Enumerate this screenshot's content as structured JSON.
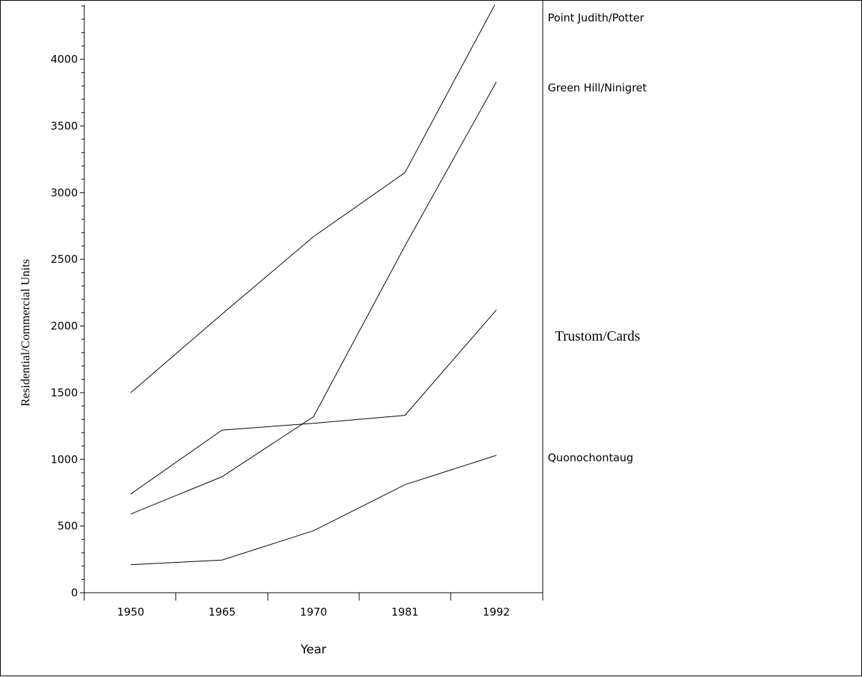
{
  "chart_data": {
    "type": "line",
    "xlabel": "Year",
    "ylabel": "Residential/Commercial Units",
    "categories": [
      "1950",
      "1965",
      "1970",
      "1981",
      "1992"
    ],
    "ylim": [
      0,
      4400
    ],
    "yticks": [
      0,
      500,
      1000,
      1500,
      2000,
      2500,
      3000,
      3500,
      4000
    ],
    "grid": false,
    "series": [
      {
        "name": "Point Judith/Potter",
        "values": [
          1500,
          2090,
          2670,
          3150,
          4430
        ]
      },
      {
        "name": "Green Hill/Ninigret",
        "values": [
          590,
          870,
          1320,
          2600,
          3830
        ]
      },
      {
        "name": "Trustom/Cards",
        "values": [
          740,
          1220,
          1270,
          1330,
          2120
        ]
      },
      {
        "name": "Quonochontaug",
        "values": [
          210,
          245,
          465,
          810,
          1030
        ]
      }
    ]
  }
}
